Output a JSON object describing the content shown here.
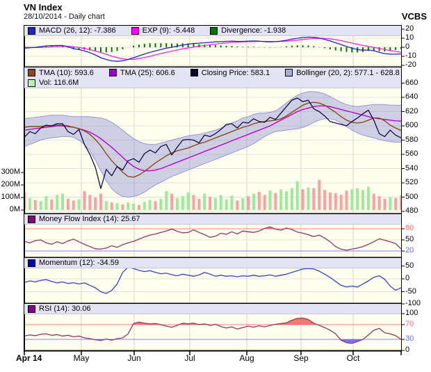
{
  "header": {
    "title": "VN Index",
    "subtitle": "28/10/2014 - Daily chart",
    "brand": "VCBS"
  },
  "panels": {
    "macd": {
      "legend": [
        {
          "label": "MACD (26, 12): -7.386",
          "color": "#2222CC"
        },
        {
          "label": "EXP (9): -5.448",
          "color": "#FF00FF"
        },
        {
          "label": "Divergence: -1.938",
          "color": "#007700"
        }
      ]
    },
    "main": {
      "legend_row1": [
        {
          "label": "TMA (10): 593.6",
          "color": "#8B4A10"
        },
        {
          "label": "TMA (25): 606.6",
          "color": "#9900CC"
        },
        {
          "label": "Closing Price: 583.1",
          "color": "#000033"
        },
        {
          "label": "Bollinger (20, 2): 577.1 - 628.8",
          "color": "#AAAADD"
        }
      ],
      "legend_row2": [
        {
          "label": "Vol: 116.6M",
          "color": "#AAFFAA"
        }
      ]
    },
    "mfi": {
      "legend": [
        {
          "label": "Money Flow Index (14): 25.67",
          "color": "#880088"
        }
      ]
    },
    "momentum": {
      "legend": [
        {
          "label": "Momentum (12): -34.59",
          "color": "#0000CC"
        }
      ]
    },
    "rsi": {
      "legend": [
        {
          "label": "RSI (14): 30.06",
          "color": "#880088"
        }
      ]
    }
  },
  "axes": {
    "macd_ticks": [
      "20",
      "10",
      "0",
      "-10",
      "-20"
    ],
    "main_ticks": [
      "660",
      "640",
      "620",
      "600",
      "580",
      "560",
      "540",
      "520",
      "500",
      "480"
    ],
    "volume_ticks": [
      "300M",
      "200M",
      "100M",
      "0M"
    ],
    "mfi_ticks": [
      {
        "label": "80",
        "color": "#FF6666"
      },
      {
        "label": "50",
        "color": "#000000"
      },
      {
        "label": "20",
        "color": "#6666FF"
      }
    ],
    "momentum_ticks": [
      "50",
      "0",
      "-50",
      "-100"
    ],
    "rsi_ticks": [
      {
        "label": "100",
        "color": "#000000"
      },
      {
        "label": "70",
        "color": "#FF6666"
      },
      {
        "label": "30",
        "color": "#6666FF"
      },
      {
        "label": "0",
        "color": "#000000"
      }
    ],
    "x_labels": [
      "Apr 14",
      "May",
      "Jun",
      "Jul",
      "Aug",
      "Sep",
      "Oct"
    ]
  },
  "colors": {
    "panel_bg": "#FFFFEE",
    "grid_h": "#E0E0E0",
    "grid_v": "#D0D0D0",
    "border": "#000000",
    "macd_line": "#2222CC",
    "signal_line": "#EE22EE",
    "divergence": "#007700",
    "close_line": "#0B0B45",
    "tma10_line": "#8B4A10",
    "tma25_line": "#BB00CC",
    "bollinger_fill": "rgba(140,140,215,0.42)",
    "bollinger_edge": "#9595DD",
    "vol_up": "#9BEB9B",
    "vol_down": "#FFA0A0",
    "mfi_line": "#993366",
    "momentum_line": "#3344CC",
    "rsi_line": "#993366",
    "threshold_red": "#FF8080",
    "threshold_blue": "#8080FF",
    "fill_red": "#FF5555",
    "fill_blue": "#5555FF",
    "legend_bg": "#E3E3F3"
  },
  "chart_data": {
    "type": "line",
    "subtype": "multi-panel financial chart, VN Index daily, Apr 14 2014 - Oct 28 2014",
    "n_points": 70,
    "x_months": [
      "Apr 14",
      "May",
      "Jun",
      "Jul",
      "Aug",
      "Sep",
      "Oct"
    ],
    "panel_order": [
      "MACD",
      "Price+Volume",
      "Money Flow Index",
      "Momentum",
      "RSI"
    ],
    "ylims": {
      "macd": [
        -22,
        24
      ],
      "price": [
        476,
        682
      ],
      "volume_m": [
        0,
        380
      ],
      "mfi": [
        0,
        119
      ],
      "momentum": [
        -97,
        81
      ],
      "rsi": [
        0,
        126
      ]
    },
    "close": [
      584,
      592,
      589,
      597,
      601,
      600,
      603,
      603,
      592,
      588,
      595,
      574,
      560,
      542,
      512,
      539,
      530,
      543,
      538,
      551,
      554,
      549,
      561,
      566,
      562,
      571,
      574,
      559,
      570,
      580,
      581,
      580,
      576,
      587,
      585,
      589,
      595,
      602,
      603,
      597,
      605,
      604,
      610,
      606,
      605,
      612,
      609,
      618,
      627,
      636,
      639,
      634,
      636,
      624,
      620,
      614,
      606,
      604,
      602,
      600,
      606,
      611,
      617,
      622,
      608,
      589,
      585,
      594,
      587,
      583.1
    ],
    "tma10": [
      598,
      599,
      599,
      599,
      600,
      600,
      601,
      601,
      600,
      598,
      596,
      593,
      588,
      581,
      572,
      561,
      551,
      543,
      535,
      529,
      528,
      531,
      536,
      542,
      548,
      553,
      558,
      562,
      565,
      567,
      569,
      572,
      575,
      577,
      580,
      583,
      586,
      589,
      592,
      595,
      598,
      600,
      603,
      605,
      606,
      607,
      608,
      610,
      614,
      619,
      624,
      629,
      632,
      633,
      632,
      629,
      624,
      619,
      613,
      608,
      605,
      604,
      605,
      608,
      611,
      611,
      607,
      601,
      597,
      593.6
    ],
    "tma25": [
      594,
      595,
      596,
      597,
      598,
      599,
      600,
      600,
      599,
      598,
      596,
      594,
      591,
      587,
      582,
      576,
      570,
      563,
      556,
      549,
      543,
      539,
      537,
      537,
      538,
      540,
      543,
      546,
      549,
      552,
      555,
      558,
      561,
      564,
      567,
      570,
      573,
      576,
      579,
      582,
      585,
      588,
      591,
      594,
      597,
      600,
      604,
      608,
      612,
      616,
      620,
      623,
      625,
      627,
      628,
      628,
      627,
      625,
      623,
      621,
      619,
      617,
      615,
      613,
      611,
      610,
      609,
      608,
      607,
      606.6
    ],
    "boll_upper": [
      610,
      611,
      612,
      613,
      614,
      615,
      615,
      615,
      614,
      613,
      613,
      613,
      613,
      612,
      611,
      609,
      605,
      600,
      594,
      588,
      582,
      578,
      575,
      574,
      574,
      576,
      578,
      580,
      582,
      584,
      586,
      587,
      588,
      590,
      592,
      594,
      597,
      600,
      604,
      607,
      611,
      613,
      616,
      618,
      618,
      619,
      621,
      626,
      632,
      638,
      643,
      646,
      648,
      648,
      647,
      645,
      641,
      637,
      633,
      630,
      628,
      627,
      628,
      629,
      630,
      630,
      630,
      629,
      629,
      628.8
    ],
    "boll_lower": [
      571,
      574,
      577,
      580,
      582,
      583,
      584,
      585,
      585,
      584,
      580,
      574,
      565,
      552,
      537,
      523,
      512,
      505,
      501,
      500,
      501,
      503,
      507,
      512,
      517,
      521,
      525,
      529,
      532,
      535,
      538,
      541,
      544,
      547,
      550,
      553,
      556,
      559,
      562,
      565,
      568,
      571,
      575,
      580,
      585,
      589,
      592,
      593,
      594,
      595,
      596,
      598,
      601,
      605,
      608,
      610,
      610,
      608,
      604,
      599,
      594,
      590,
      587,
      585,
      583,
      581,
      579,
      578,
      577,
      577.1
    ],
    "volume_m": [
      140,
      95,
      80,
      70,
      110,
      85,
      120,
      130,
      90,
      75,
      85,
      150,
      120,
      100,
      130,
      70,
      60,
      55,
      45,
      60,
      50,
      40,
      65,
      80,
      70,
      90,
      150,
      130,
      95,
      110,
      140,
      120,
      90,
      130,
      105,
      95,
      120,
      85,
      115,
      75,
      95,
      110,
      130,
      145,
      120,
      155,
      135,
      165,
      150,
      175,
      230,
      165,
      180,
      175,
      240,
      160,
      140,
      135,
      120,
      155,
      165,
      175,
      160,
      185,
      130,
      110,
      90,
      100,
      95,
      116.6
    ],
    "macd": [
      -1,
      -0.5,
      0,
      0.8,
      1.5,
      1.8,
      2,
      2,
      0.5,
      -1.5,
      -2.5,
      -4,
      -6,
      -8.5,
      -11.5,
      -13.5,
      -15,
      -15.5,
      -15,
      -13.5,
      -11.5,
      -9.5,
      -7.5,
      -5.5,
      -4,
      -2.5,
      -1,
      0,
      1.2,
      2.5,
      3.5,
      4.2,
      4.5,
      5,
      5.5,
      6,
      6.2,
      6.5,
      6.8,
      6.5,
      6.5,
      6.8,
      7,
      6.8,
      6.2,
      6,
      6.2,
      6.8,
      7.8,
      9,
      10,
      10.8,
      11.2,
      11,
      10.2,
      8.8,
      7,
      5,
      3,
      1,
      -1,
      -2.5,
      -3.2,
      -3,
      -3.8,
      -5.5,
      -7,
      -7.5,
      -7.6,
      -7.386
    ],
    "macd_signal": [
      0,
      -0.2,
      -0.3,
      -0.2,
      0,
      0.4,
      0.8,
      1.1,
      1,
      0.5,
      -0.3,
      -1.3,
      -2.5,
      -4,
      -5.8,
      -7.8,
      -9.8,
      -11.5,
      -12.8,
      -13.5,
      -13.3,
      -12.5,
      -11.3,
      -10,
      -8.5,
      -7,
      -5.5,
      -4.2,
      -3,
      -1.8,
      -0.8,
      0.2,
      1.2,
      2,
      2.8,
      3.5,
      4.2,
      4.8,
      5.3,
      5.7,
      6,
      6.2,
      6.4,
      6.5,
      6.5,
      6.4,
      6.4,
      6.5,
      6.8,
      7.3,
      7.9,
      8.6,
      9.2,
      9.7,
      9.9,
      9.8,
      9.3,
      8.5,
      7.4,
      6.1,
      4.7,
      3.3,
      2,
      0.9,
      -0.1,
      -1.2,
      -2.4,
      -3.6,
      -4.6,
      -5.448
    ],
    "mfi": [
      46,
      42,
      48,
      50,
      42,
      38,
      45,
      40,
      47,
      52,
      45,
      38,
      32,
      26,
      25,
      28,
      34,
      30,
      37,
      42,
      46,
      52,
      58,
      63,
      66,
      70,
      74,
      79,
      73,
      69,
      70,
      77,
      70,
      64,
      57,
      60,
      68,
      65,
      72,
      66,
      74,
      72,
      70,
      74,
      81,
      85,
      79,
      76,
      82,
      78,
      71,
      68,
      64,
      59,
      63,
      55,
      45,
      32,
      25,
      22,
      25,
      28,
      32,
      38,
      45,
      53,
      49,
      45,
      40,
      25.67
    ],
    "momentum": [
      -14,
      -8,
      -12,
      -6,
      -3,
      -10,
      -16,
      -12,
      -18,
      -15,
      -20,
      -16,
      -25,
      -35,
      -50,
      -57,
      -45,
      -20,
      25,
      45,
      40,
      33,
      28,
      32,
      25,
      20,
      22,
      16,
      12,
      18,
      14,
      10,
      15,
      25,
      18,
      10,
      14,
      10,
      12,
      8,
      12,
      10,
      14,
      10,
      12,
      15,
      10,
      14,
      18,
      25,
      32,
      38,
      40,
      38,
      30,
      18,
      5,
      -10,
      -25,
      -32,
      -28,
      -32,
      -20,
      -8,
      6,
      12,
      -2,
      -28,
      -45,
      -34.59
    ],
    "rsi": [
      39,
      42,
      40,
      44,
      45,
      41,
      43,
      39,
      41,
      37,
      39,
      34,
      32,
      29,
      27,
      31,
      28,
      32,
      34,
      45,
      73,
      77,
      74,
      72,
      73,
      70,
      66,
      63,
      68,
      74,
      72,
      74,
      70,
      72,
      68,
      71,
      65,
      61,
      64,
      58,
      62,
      66,
      63,
      67,
      64,
      68,
      71,
      73,
      75,
      82,
      87,
      88,
      84,
      74,
      68,
      62,
      55,
      45,
      28,
      21,
      19,
      24,
      30,
      42,
      55,
      60,
      48,
      45,
      40,
      30.06
    ],
    "thresholds": {
      "mfi": [
        80,
        20
      ],
      "rsi": [
        70,
        30
      ]
    }
  }
}
